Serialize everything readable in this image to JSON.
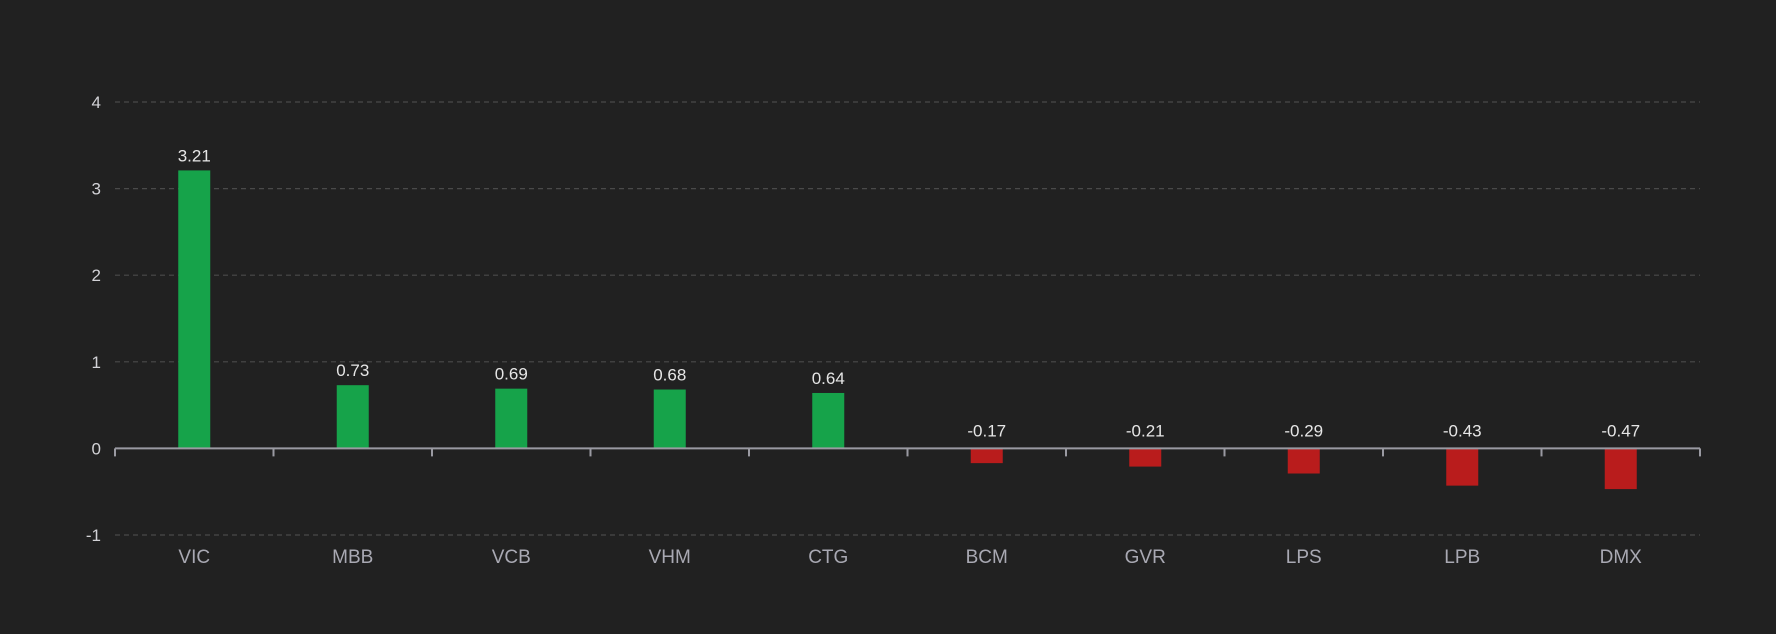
{
  "colors": {
    "background": "#212121",
    "positive": "#16a34a",
    "negative": "#b91c1c"
  },
  "chart_data": {
    "type": "bar",
    "categories": [
      "VIC",
      "MBB",
      "VCB",
      "VHM",
      "CTG",
      "BCM",
      "GVR",
      "LPS",
      "LPB",
      "DMX"
    ],
    "values": [
      3.21,
      0.73,
      0.69,
      0.68,
      0.64,
      -0.17,
      -0.21,
      -0.29,
      -0.43,
      -0.47
    ],
    "data_labels": [
      "3.21",
      "0.73",
      "0.69",
      "0.68",
      "0.64",
      "-0.17",
      "-0.21",
      "-0.29",
      "-0.43",
      "-0.47"
    ],
    "yticks": [
      4,
      3,
      2,
      1,
      0,
      -1
    ],
    "ytick_labels": [
      "4",
      "3",
      "2",
      "1",
      "0",
      "-1"
    ],
    "ylim": [
      -1,
      4
    ],
    "grid": true,
    "legend": "none",
    "title": "",
    "xlabel": "",
    "ylabel": ""
  }
}
